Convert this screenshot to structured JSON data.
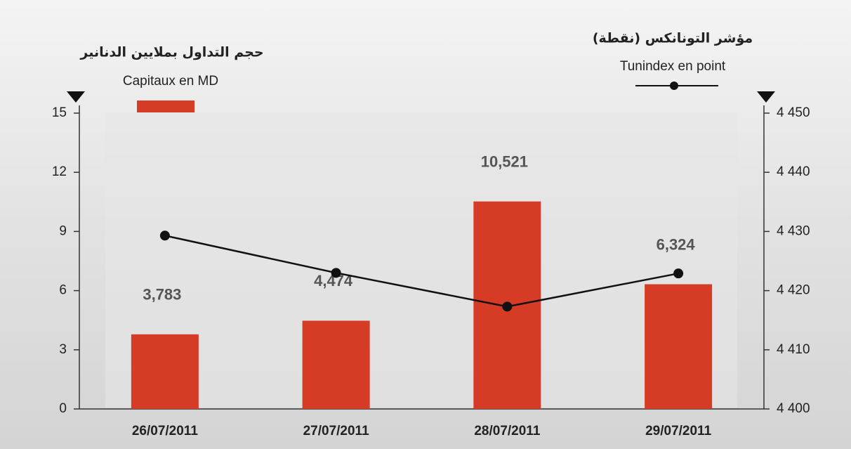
{
  "chart_data": {
    "type": "bar_line",
    "categories": [
      "26/07/2011",
      "27/07/2011",
      "28/07/2011",
      "29/07/2011"
    ],
    "series": [
      {
        "name": "Capitaux en MD",
        "name_ar": "حجم التداول بملايين الدنانير",
        "type": "bar",
        "color": "#d63b25",
        "values": [
          3.783,
          4.474,
          10.521,
          6.324
        ],
        "value_labels": [
          "3,783",
          "4,474",
          "10,521",
          "6,324"
        ]
      },
      {
        "name": "Tunindex en point",
        "name_ar": "مؤشر التونانكس (نقطة)",
        "type": "line",
        "axis": "y2",
        "color": "#111111",
        "values": [
          4429.3,
          4423.0,
          4417.3,
          4422.9
        ]
      }
    ],
    "ylim": [
      0,
      15
    ],
    "yticks": [
      0,
      3,
      6,
      9,
      12,
      15
    ],
    "y2lim": [
      4400,
      4450
    ],
    "y2ticks": [
      {
        "value": 4400,
        "label": "4 400"
      },
      {
        "value": 4410,
        "label": "4 410"
      },
      {
        "value": 4420,
        "label": "4 420"
      },
      {
        "value": 4430,
        "label": "4 430"
      },
      {
        "value": 4440,
        "label": "4 440"
      },
      {
        "value": 4450,
        "label": "4 450"
      }
    ]
  }
}
